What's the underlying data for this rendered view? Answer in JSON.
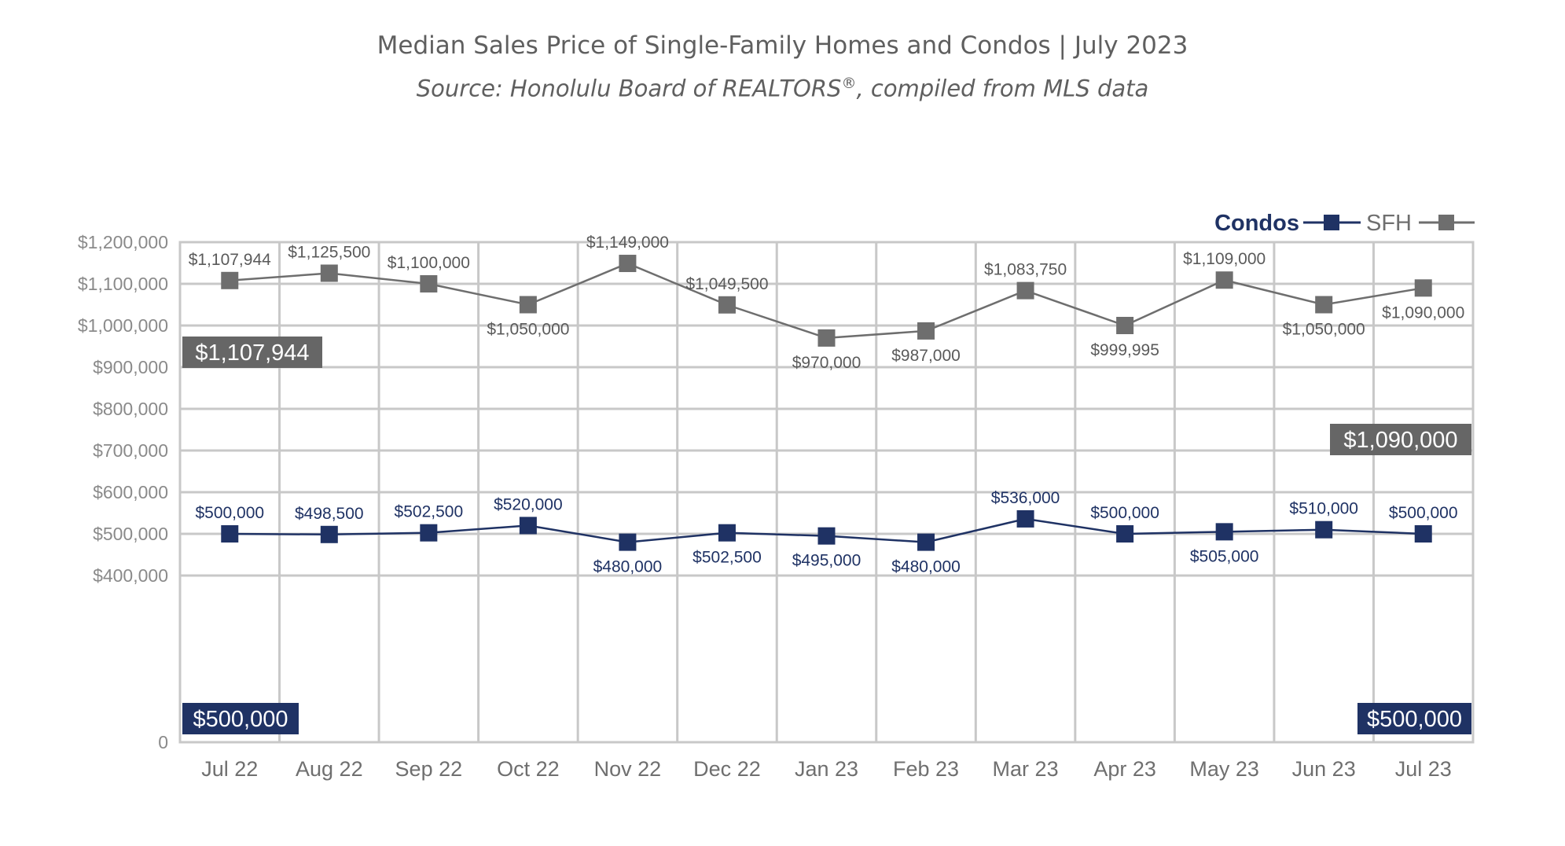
{
  "title": "Median Sales Price of Single-Family Homes and Condos | July 2023",
  "subtitle_main": "Source: Honolulu Board of REALTORS",
  "subtitle_sup": "®",
  "subtitle_tail": ", compiled from MLS data",
  "colors": {
    "sfh": "#6e6e6e",
    "condo": "#1f3264",
    "grid": "#c8c8c8"
  },
  "chart_data": {
    "type": "line",
    "categories": [
      "Jul 22",
      "Aug 22",
      "Sep 22",
      "Oct 22",
      "Nov 22",
      "Dec 22",
      "Jan 23",
      "Feb 23",
      "Mar 23",
      "Apr 23",
      "May 23",
      "Jun 23",
      "Jul 23"
    ],
    "ylim": [
      0,
      1200000
    ],
    "yticks": [
      {
        "value": 1200000,
        "label": "$1,200,000"
      },
      {
        "value": 1100000,
        "label": "$1,100,000"
      },
      {
        "value": 1000000,
        "label": "$1,000,000"
      },
      {
        "value": 900000,
        "label": "$900,000"
      },
      {
        "value": 800000,
        "label": "$800,000"
      },
      {
        "value": 700000,
        "label": "$700,000"
      },
      {
        "value": 600000,
        "label": "$600,000"
      },
      {
        "value": 500000,
        "label": "$500,000"
      },
      {
        "value": 400000,
        "label": "$400,000"
      },
      {
        "value": 0,
        "label": "0"
      }
    ],
    "grid": true,
    "legend_position": "top-right",
    "series": [
      {
        "name": "Condos",
        "values": [
          500000,
          498500,
          502500,
          520000,
          480000,
          502500,
          495000,
          480000,
          536000,
          500000,
          505000,
          510000,
          500000
        ],
        "labels": [
          "$500,000",
          "$498,500",
          "$502,500",
          "$520,000",
          "$480,000",
          "$502,500",
          "$495,000",
          "$480,000",
          "$536,000",
          "$500,000",
          "$505,000",
          "$510,000",
          "$500,000"
        ],
        "callout_first": "$500,000",
        "callout_last": "$500,000"
      },
      {
        "name": "SFH",
        "values": [
          1107944,
          1125500,
          1100000,
          1050000,
          1149000,
          1049500,
          970000,
          987000,
          1083750,
          999995,
          1109000,
          1050000,
          1090000
        ],
        "labels": [
          "$1,107,944",
          "$1,125,500",
          "$1,100,000",
          "$1,050,000",
          "$1,149,000",
          "$1,049,500",
          "$970,000",
          "$987,000",
          "$1,083,750",
          "$999,995",
          "$1,109,000",
          "$1,050,000",
          "$1,090,000"
        ],
        "callout_first": "$1,107,944",
        "callout_last": "$1,090,000"
      }
    ]
  }
}
